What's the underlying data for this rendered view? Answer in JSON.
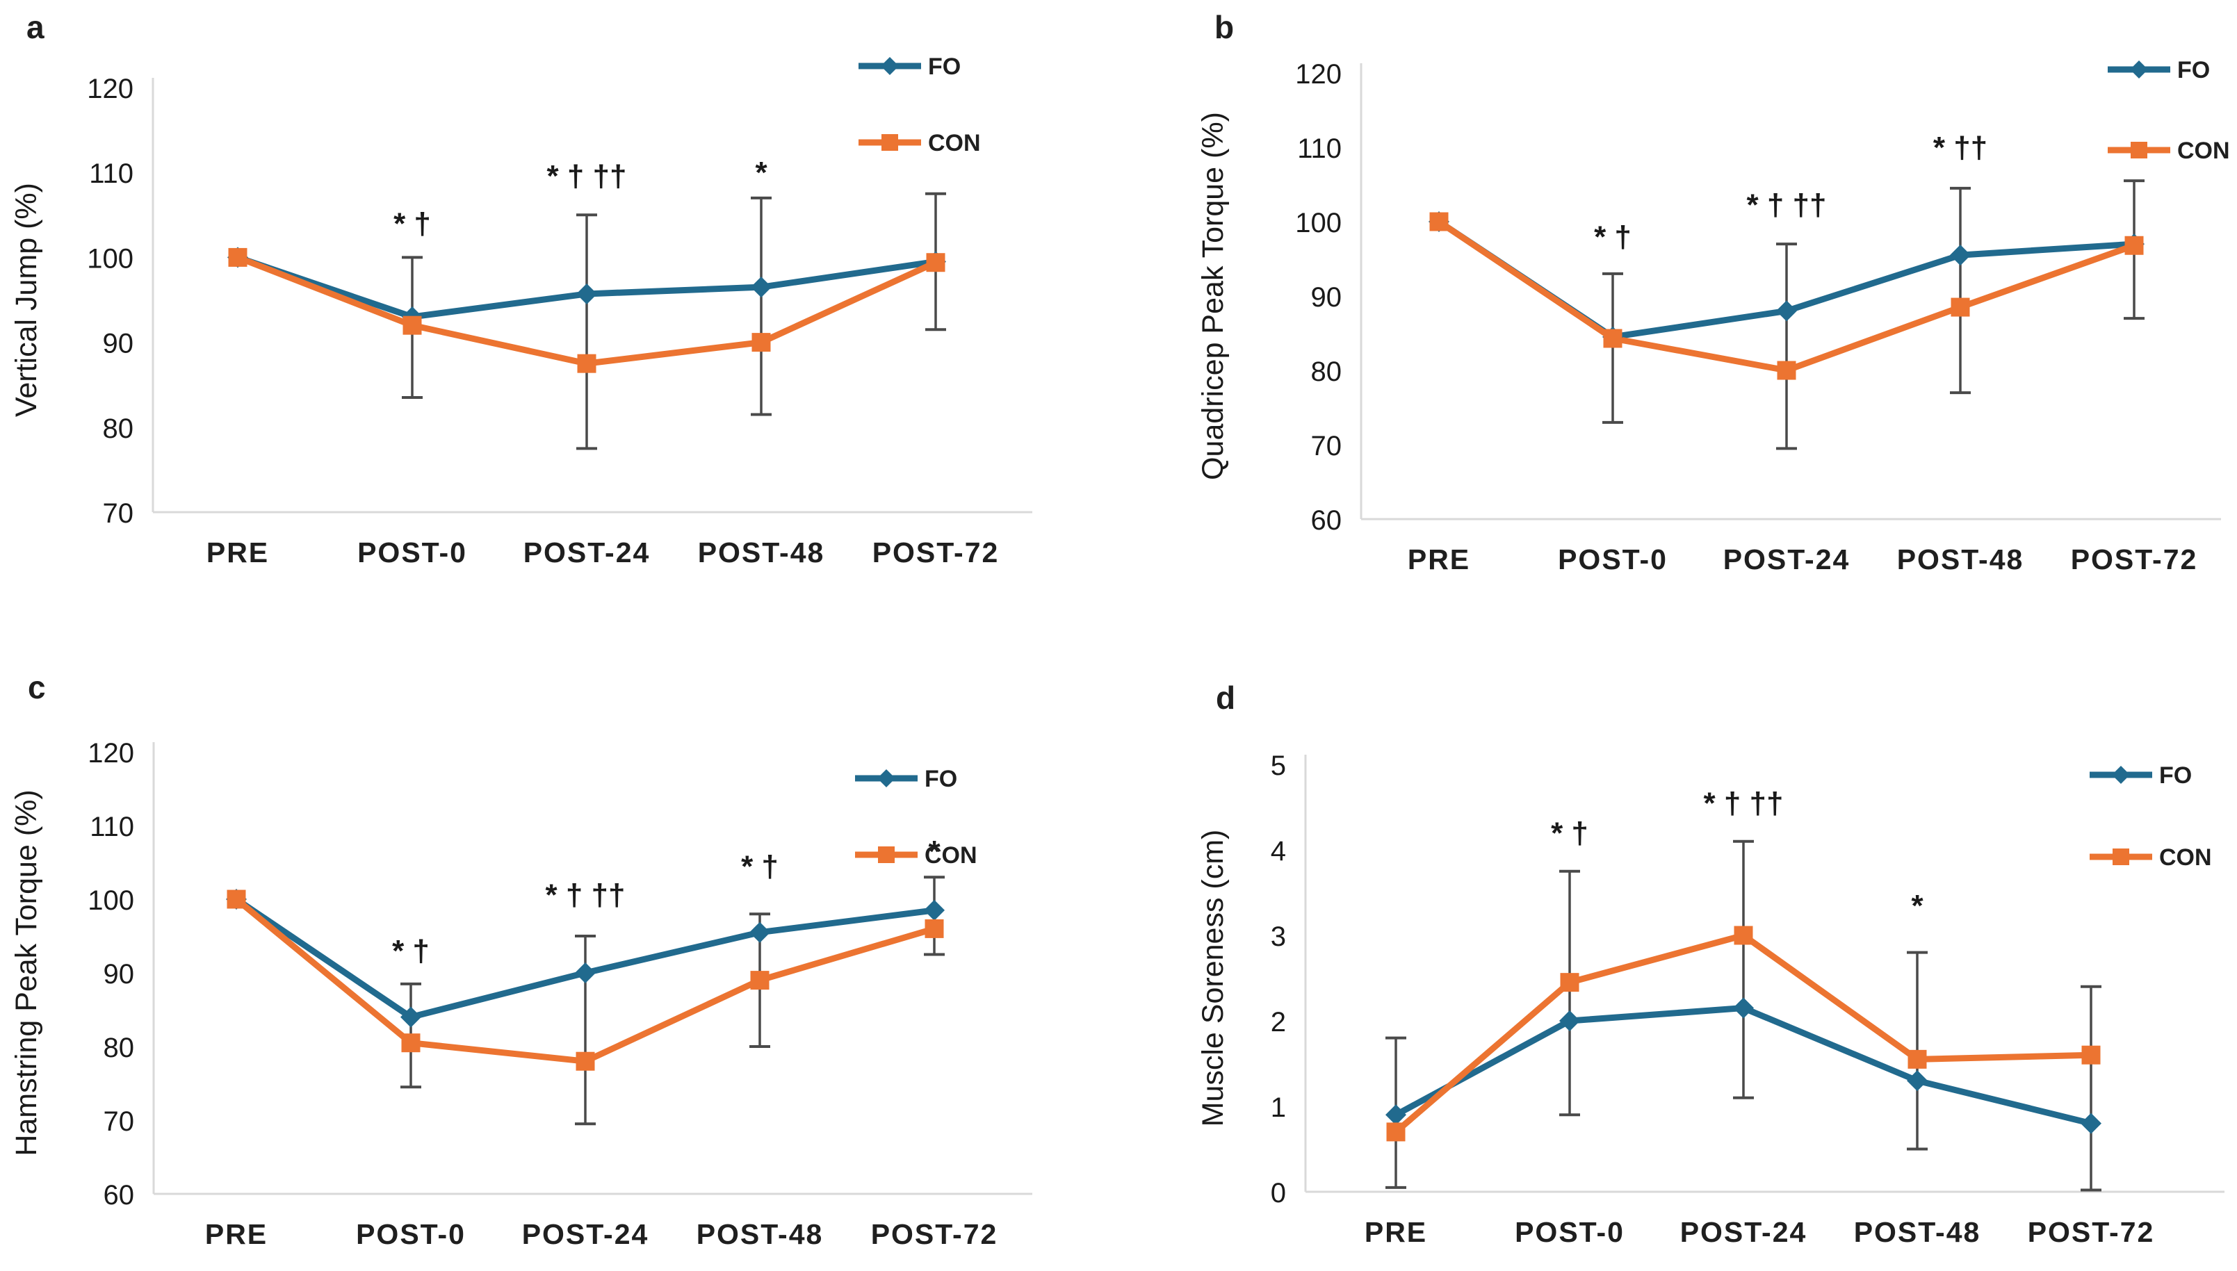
{
  "figure": {
    "background": "#ffffff",
    "legend": {
      "fo_label": "FO",
      "con_label": "CON"
    }
  },
  "colors": {
    "fo": "#216A8E",
    "con": "#EC7431",
    "axis_line": "#D9D9D9",
    "error_bar": "#4A4A4A",
    "tick_text": "#1A1A1A",
    "label_text": "#1F1F1F"
  },
  "chart_data": [
    {
      "type": "line",
      "panel_label": "a",
      "ylabel": "Vertical Jump (%)",
      "xlabel": "",
      "title": "",
      "ylim": [
        70,
        120
      ],
      "yticks": [
        70,
        80,
        90,
        100,
        110,
        120
      ],
      "grid": false,
      "legend_position": "top-right",
      "categories": [
        "PRE",
        "POST-0",
        "POST-24",
        "POST-48",
        "POST-72"
      ],
      "series": [
        {
          "name": "FO",
          "marker": "diamond",
          "values": [
            100,
            93,
            95.7,
            96.5,
            99.5
          ]
        },
        {
          "name": "CON",
          "marker": "square",
          "values": [
            100,
            92,
            87.5,
            90,
            99.4
          ]
        }
      ],
      "error_bars": [
        null,
        [
          83.5,
          100
        ],
        [
          77.5,
          105
        ],
        [
          81.5,
          107
        ],
        [
          91.5,
          107.5
        ]
      ],
      "annotations": [
        {
          "category": "POST-0",
          "text": "* †",
          "y": 104
        },
        {
          "category": "POST-24",
          "text": "* † ††",
          "y": 109.6
        },
        {
          "category": "POST-48",
          "text": "*",
          "y": 110
        }
      ]
    },
    {
      "type": "line",
      "panel_label": "b",
      "ylabel": "Quadricep Peak Torque (%)",
      "xlabel": "",
      "title": "",
      "ylim": [
        60,
        120
      ],
      "yticks": [
        60,
        70,
        80,
        90,
        100,
        110,
        120
      ],
      "grid": false,
      "legend_position": "top-right",
      "categories": [
        "PRE",
        "POST-0",
        "POST-24",
        "POST-48",
        "POST-72"
      ],
      "series": [
        {
          "name": "FO",
          "marker": "diamond",
          "values": [
            100,
            84.5,
            88,
            95.5,
            97
          ]
        },
        {
          "name": "CON",
          "marker": "square",
          "values": [
            100,
            84.3,
            80,
            88.5,
            96.8
          ]
        }
      ],
      "error_bars": [
        null,
        [
          73,
          93
        ],
        [
          69.5,
          97
        ],
        [
          77,
          104.5
        ],
        [
          87,
          105.5
        ]
      ],
      "annotations": [
        {
          "category": "POST-0",
          "text": "* †",
          "y": 98
        },
        {
          "category": "POST-24",
          "text": "* † ††",
          "y": 102.3
        },
        {
          "category": "POST-48",
          "text": "* ††",
          "y": 110
        }
      ]
    },
    {
      "type": "line",
      "panel_label": "c",
      "ylabel": "Hamstring Peak Torque (%)",
      "xlabel": "",
      "title": "",
      "ylim": [
        60,
        120
      ],
      "yticks": [
        60,
        70,
        80,
        90,
        100,
        110,
        120
      ],
      "grid": false,
      "legend_position": "top-right",
      "categories": [
        "PRE",
        "POST-0",
        "POST-24",
        "POST-48",
        "POST-72"
      ],
      "series": [
        {
          "name": "FO",
          "marker": "diamond",
          "values": [
            100,
            84,
            90,
            95.5,
            98.5
          ]
        },
        {
          "name": "CON",
          "marker": "square",
          "values": [
            100,
            80.5,
            78,
            89,
            96
          ]
        }
      ],
      "error_bars": [
        null,
        [
          74.5,
          88.5
        ],
        [
          69.5,
          95
        ],
        [
          80,
          98
        ],
        [
          92.5,
          103
        ]
      ],
      "annotations": [
        {
          "category": "POST-0",
          "text": "* †",
          "y": 93
        },
        {
          "category": "POST-24",
          "text": "* † ††",
          "y": 100.6
        },
        {
          "category": "POST-48",
          "text": "* †",
          "y": 104.5
        },
        {
          "category": "POST-72",
          "text": "*",
          "y": 106.5
        }
      ]
    },
    {
      "type": "line",
      "panel_label": "d",
      "ylabel": "Muscle Soreness (cm)",
      "xlabel": "",
      "title": "",
      "ylim": [
        0,
        5
      ],
      "yticks": [
        0,
        1,
        2,
        3,
        4,
        5
      ],
      "grid": false,
      "legend_position": "top-right",
      "categories": [
        "PRE",
        "POST-0",
        "POST-24",
        "POST-48",
        "POST-72"
      ],
      "series": [
        {
          "name": "FO",
          "marker": "diamond",
          "values": [
            0.9,
            2.0,
            2.15,
            1.3,
            0.8
          ]
        },
        {
          "name": "CON",
          "marker": "square",
          "values": [
            0.7,
            2.45,
            3.0,
            1.55,
            1.6
          ]
        }
      ],
      "error_bars": [
        [
          0.05,
          1.8
        ],
        [
          0.9,
          3.75
        ],
        [
          1.1,
          4.1
        ],
        [
          0.5,
          2.8
        ],
        [
          0.02,
          2.4
        ]
      ],
      "annotations": [
        {
          "category": "POST-0",
          "text": "* †",
          "y": 4.2
        },
        {
          "category": "POST-24",
          "text": "* † ††",
          "y": 4.55
        },
        {
          "category": "POST-48",
          "text": "*",
          "y": 3.35
        }
      ]
    }
  ]
}
